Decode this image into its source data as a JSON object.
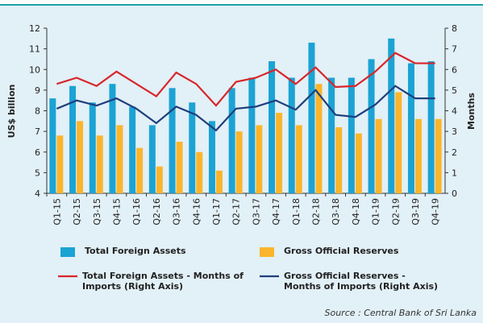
{
  "chart_data": {
    "type": "bar",
    "categories": [
      "Q1-15",
      "Q2-15",
      "Q3-15",
      "Q4-15",
      "Q1-16",
      "Q2-16",
      "Q3-16",
      "Q4-16",
      "Q1-17",
      "Q2-17",
      "Q3-17",
      "Q4-17",
      "Q1-18",
      "Q2-18",
      "Q3-18",
      "Q4-18",
      "Q1-19",
      "Q2-19",
      "Q3-19",
      "Q4-19"
    ],
    "series": [
      {
        "name": "Total Foreign Assets",
        "type": "bar",
        "color": "#1ba3d4",
        "values": [
          8.6,
          9.2,
          8.4,
          9.3,
          8.2,
          7.3,
          9.1,
          8.4,
          7.5,
          9.1,
          9.6,
          10.4,
          9.6,
          11.3,
          9.6,
          9.6,
          10.5,
          11.5,
          10.3,
          10.4
        ]
      },
      {
        "name": "Gross Official Reserves",
        "type": "bar",
        "color": "#fbb52c",
        "values": [
          6.8,
          7.5,
          6.8,
          7.3,
          6.2,
          5.3,
          6.5,
          6.0,
          5.1,
          7.0,
          7.3,
          7.9,
          7.3,
          9.3,
          7.2,
          6.9,
          7.6,
          8.9,
          7.6,
          7.6
        ]
      },
      {
        "name": "Total Foreign Assets - Months of Imports (Right Axis)",
        "type": "line",
        "axis": "y2",
        "color": "#d8262b",
        "values": [
          5.3,
          5.6,
          5.2,
          5.9,
          5.3,
          4.7,
          5.85,
          5.3,
          4.25,
          5.4,
          5.6,
          6.0,
          5.3,
          6.1,
          5.15,
          5.2,
          5.9,
          6.8,
          6.3,
          6.3
        ]
      },
      {
        "name": "Gross Official Reserves - Months of Imports (Right Axis)",
        "type": "line",
        "axis": "y2",
        "color": "#1e3f7d",
        "values": [
          4.1,
          4.5,
          4.25,
          4.6,
          4.1,
          3.4,
          4.2,
          3.8,
          3.05,
          4.1,
          4.2,
          4.5,
          4.05,
          5.0,
          3.8,
          3.7,
          4.3,
          5.2,
          4.6,
          4.6
        ]
      }
    ],
    "y_label": "US$ billion",
    "y2_label": "Months",
    "ylim": [
      4,
      12
    ],
    "yticks": [
      4,
      5,
      6,
      7,
      8,
      9,
      10,
      11,
      12
    ],
    "y2lim": [
      0,
      8
    ],
    "y2ticks": [
      0,
      1,
      2,
      3,
      4,
      5,
      6,
      7,
      8
    ],
    "grid": false,
    "source": "Source : Central Bank of Sri Lanka"
  }
}
